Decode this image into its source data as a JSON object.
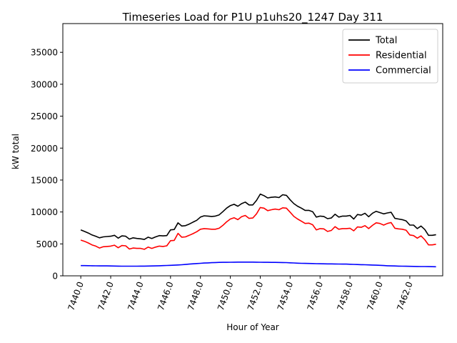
{
  "chart_data": {
    "type": "line",
    "title": "Timeseries Load for P1U p1uhs20_1247  Day 311",
    "xlabel": "Hour of Year",
    "ylabel": "kW total",
    "xlim": [
      7438.8,
      7464.2
    ],
    "ylim": [
      0,
      39500
    ],
    "x_ticks": [
      7440.0,
      7442.0,
      7444.0,
      7446.0,
      7448.0,
      7450.0,
      7452.0,
      7454.0,
      7456.0,
      7458.0,
      7460.0,
      7462.0
    ],
    "x_tick_labels": [
      "7440.0",
      "7442.0",
      "7444.0",
      "7446.0",
      "7448.0",
      "7450.0",
      "7452.0",
      "7454.0",
      "7456.0",
      "7458.0",
      "7460.0",
      "7462.0"
    ],
    "y_ticks": [
      0,
      5000,
      10000,
      15000,
      20000,
      25000,
      30000,
      35000
    ],
    "y_tick_labels": [
      "0",
      "5000",
      "10000",
      "15000",
      "20000",
      "25000",
      "30000",
      "35000"
    ],
    "grid": false,
    "legend_position": "top-right",
    "x": [
      7440.0,
      7440.25,
      7440.5,
      7440.75,
      7441.0,
      7441.25,
      7441.5,
      7441.75,
      7442.0,
      7442.25,
      7442.5,
      7442.75,
      7443.0,
      7443.25,
      7443.5,
      7443.75,
      7444.0,
      7444.25,
      7444.5,
      7444.75,
      7445.0,
      7445.25,
      7445.5,
      7445.75,
      7446.0,
      7446.25,
      7446.5,
      7446.75,
      7447.0,
      7447.25,
      7447.5,
      7447.75,
      7448.0,
      7448.25,
      7448.5,
      7448.75,
      7449.0,
      7449.25,
      7449.5,
      7449.75,
      7450.0,
      7450.25,
      7450.5,
      7450.75,
      7451.0,
      7451.25,
      7451.5,
      7451.75,
      7452.0,
      7452.25,
      7452.5,
      7452.75,
      7453.0,
      7453.25,
      7453.5,
      7453.75,
      7454.0,
      7454.25,
      7454.5,
      7454.75,
      7455.0,
      7455.25,
      7455.5,
      7455.75,
      7456.0,
      7456.25,
      7456.5,
      7456.75,
      7457.0,
      7457.25,
      7457.5,
      7457.75,
      7458.0,
      7458.25,
      7458.5,
      7458.75,
      7459.0,
      7459.25,
      7459.5,
      7459.75,
      7460.0,
      7460.25,
      7460.5,
      7460.75,
      7461.0,
      7461.25,
      7461.5,
      7461.75,
      7462.0,
      7462.25,
      7462.5,
      7462.75,
      7463.0,
      7463.25,
      7463.5,
      7463.75
    ],
    "series": [
      {
        "name": "Total",
        "color": "#000000",
        "values": [
          7200,
          6950,
          6700,
          6400,
          6200,
          5950,
          6100,
          6150,
          6200,
          6350,
          5900,
          6250,
          6200,
          5750,
          5950,
          5850,
          5800,
          5700,
          6050,
          5850,
          6100,
          6300,
          6250,
          6300,
          7200,
          7250,
          8300,
          7800,
          7850,
          8100,
          8400,
          8700,
          9200,
          9400,
          9350,
          9300,
          9350,
          9550,
          10050,
          10600,
          11000,
          11200,
          10900,
          11300,
          11550,
          11100,
          11100,
          11800,
          12800,
          12550,
          12200,
          12300,
          12350,
          12250,
          12700,
          12600,
          11900,
          11300,
          10900,
          10600,
          10250,
          10250,
          10050,
          9200,
          9350,
          9300,
          8950,
          9050,
          9650,
          9200,
          9350,
          9350,
          9450,
          8900,
          9600,
          9500,
          9800,
          9250,
          9800,
          10100,
          9900,
          9700,
          9850,
          9950,
          9000,
          8900,
          8800,
          8600,
          7950,
          7950,
          7400,
          7800,
          7250,
          6350,
          6350,
          6450
        ]
      },
      {
        "name": "Residential",
        "color": "#ff0000",
        "values": [
          5600,
          5400,
          5150,
          4850,
          4650,
          4350,
          4550,
          4600,
          4650,
          4800,
          4400,
          4750,
          4700,
          4200,
          4350,
          4300,
          4300,
          4150,
          4500,
          4300,
          4500,
          4650,
          4600,
          4700,
          5500,
          5550,
          6650,
          6050,
          6100,
          6350,
          6600,
          6900,
          7300,
          7400,
          7350,
          7300,
          7300,
          7450,
          7900,
          8450,
          8900,
          9100,
          8800,
          9250,
          9450,
          9000,
          9050,
          9700,
          10700,
          10600,
          10200,
          10350,
          10450,
          10350,
          10650,
          10600,
          9950,
          9300,
          8900,
          8550,
          8200,
          8250,
          8000,
          7200,
          7400,
          7350,
          6950,
          7100,
          7700,
          7300,
          7400,
          7400,
          7450,
          7050,
          7650,
          7600,
          7850,
          7400,
          7900,
          8300,
          8200,
          7950,
          8200,
          8350,
          7450,
          7350,
          7300,
          7150,
          6400,
          6300,
          5900,
          6250,
          5650,
          4850,
          4850,
          4950
        ]
      },
      {
        "name": "Commercial",
        "color": "#0000ff",
        "values": [
          1600,
          1600,
          1590,
          1580,
          1570,
          1560,
          1550,
          1550,
          1540,
          1530,
          1520,
          1510,
          1510,
          1510,
          1510,
          1510,
          1520,
          1520,
          1530,
          1540,
          1560,
          1580,
          1600,
          1620,
          1650,
          1670,
          1700,
          1730,
          1780,
          1830,
          1880,
          1920,
          1960,
          2000,
          2030,
          2060,
          2080,
          2100,
          2110,
          2120,
          2130,
          2140,
          2150,
          2150,
          2150,
          2150,
          2150,
          2140,
          2130,
          2120,
          2110,
          2100,
          2100,
          2090,
          2080,
          2070,
          2040,
          2010,
          1980,
          1960,
          1950,
          1940,
          1920,
          1900,
          1890,
          1880,
          1870,
          1870,
          1860,
          1850,
          1840,
          1830,
          1810,
          1790,
          1770,
          1750,
          1730,
          1710,
          1690,
          1670,
          1640,
          1610,
          1580,
          1560,
          1540,
          1520,
          1510,
          1500,
          1490,
          1480,
          1470,
          1460,
          1450,
          1440,
          1430,
          1420
        ]
      }
    ]
  }
}
